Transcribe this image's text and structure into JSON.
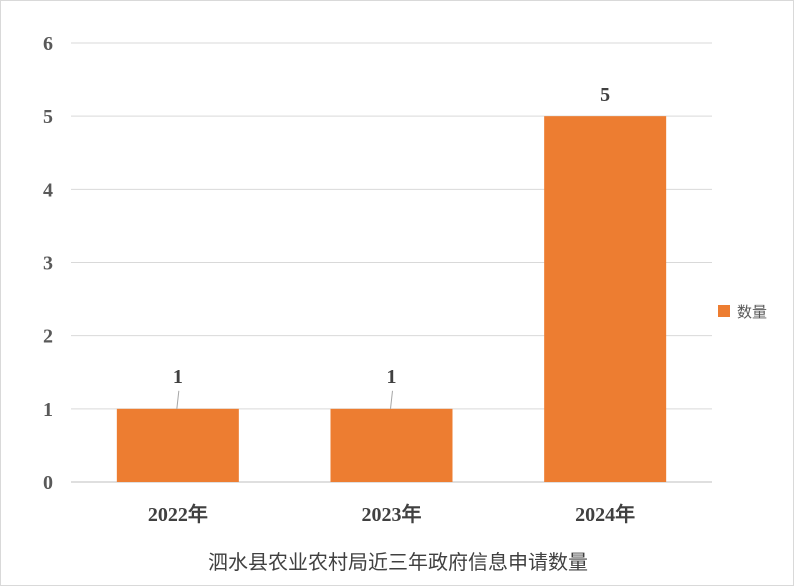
{
  "chart_data": {
    "type": "bar",
    "categories": [
      "2022年",
      "2023年",
      "2024年"
    ],
    "series": [
      {
        "name": "数量",
        "values": [
          1,
          1,
          5
        ],
        "color": "#ED7D31"
      }
    ],
    "title": "泗水县农业农村局近三年政府信息申请数量",
    "xlabel": "",
    "ylabel": "",
    "ylim": [
      0,
      6
    ],
    "yticks": [
      0,
      1,
      2,
      3,
      4,
      5,
      6
    ],
    "grid": true,
    "legend": "right",
    "data_labels": true
  },
  "colors": {
    "gridline": "#d9d9d9",
    "axis": "#bfbfbf"
  }
}
